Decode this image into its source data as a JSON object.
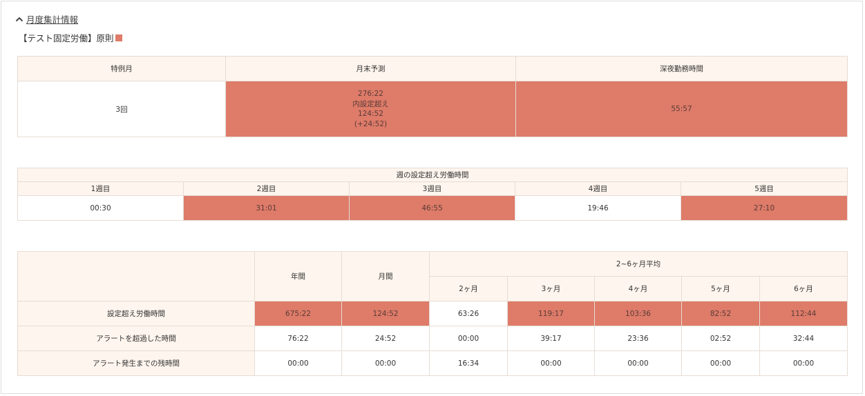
{
  "section": {
    "title": "月度集計情報"
  },
  "rule": {
    "label": "【テスト固定労働】原則",
    "color": "#de7b69"
  },
  "summary": {
    "headers": [
      "特例月",
      "月末予測",
      "深夜勤務時間"
    ],
    "special_month": "3回",
    "forecast_lines": [
      "276:22",
      "内設定超え",
      "124:52",
      "(+24:52)"
    ],
    "night_hours": "55:57"
  },
  "weekly": {
    "title": "週の設定超え労働時間",
    "weeks": [
      {
        "label": "1週目",
        "value": "00:30"
      },
      {
        "label": "2週目",
        "value": "31:01"
      },
      {
        "label": "3週目",
        "value": "46:55"
      },
      {
        "label": "4週目",
        "value": "19:46"
      },
      {
        "label": "5週目",
        "value": "27:10"
      }
    ]
  },
  "overtime": {
    "year_header": "年間",
    "month_header": "月間",
    "avg_header": "2~6ヶ月平均",
    "avg_subheaders": [
      "2ヶ月",
      "3ヶ月",
      "4ヶ月",
      "5ヶ月",
      "6ヶ月"
    ],
    "rows": [
      {
        "label": "設定超え労働時間",
        "values": [
          "675:22",
          "124:52",
          "63:26",
          "119:17",
          "103:36",
          "82:52",
          "112:44"
        ]
      },
      {
        "label": "アラートを超過した時間",
        "values": [
          "76:22",
          "24:52",
          "00:00",
          "39:17",
          "23:36",
          "02:52",
          "32:44"
        ]
      },
      {
        "label": "アラート発生までの残時間",
        "values": [
          "00:00",
          "00:00",
          "16:34",
          "00:00",
          "00:00",
          "00:00",
          "00:00"
        ]
      }
    ]
  }
}
